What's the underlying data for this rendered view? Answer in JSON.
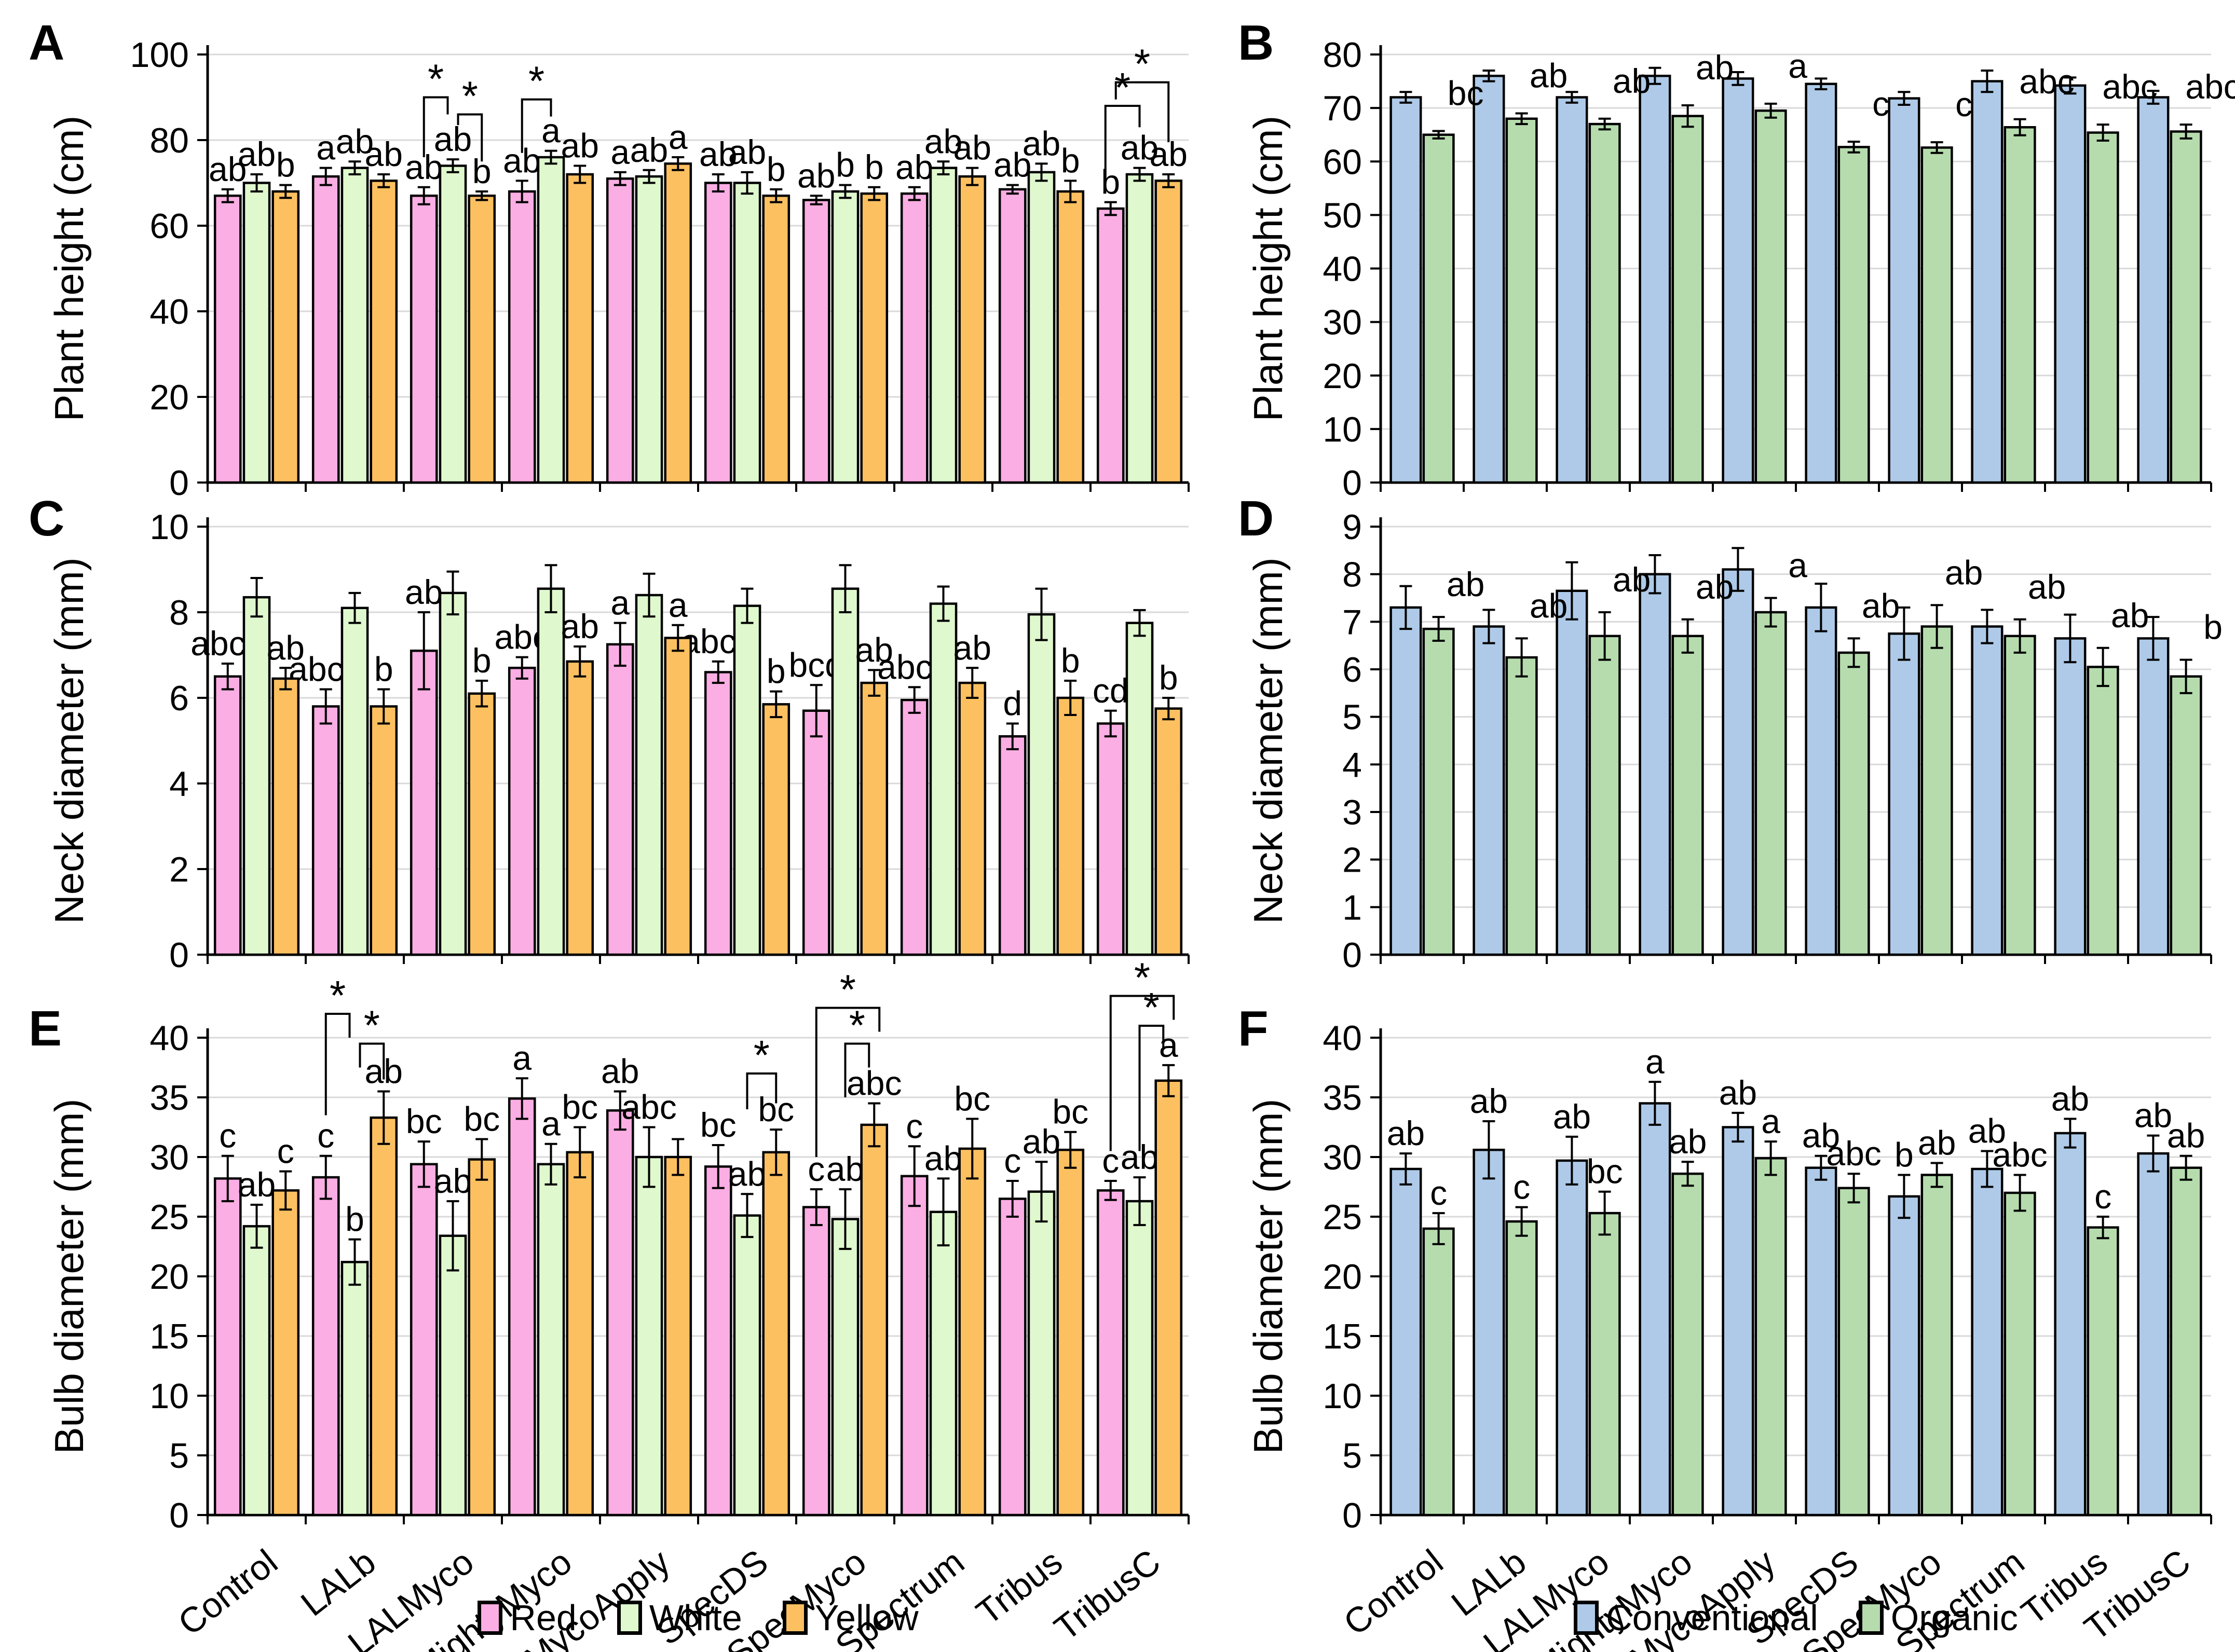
{
  "figure": {
    "panel_letters": [
      "A",
      "B",
      "C",
      "D",
      "E",
      "F"
    ]
  },
  "legend_left": {
    "items": [
      {
        "label": "Red",
        "color": "#FBAEE3"
      },
      {
        "label": "White",
        "color": "#DFF8CE"
      },
      {
        "label": "Yellow",
        "color": "#FDC061"
      }
    ]
  },
  "legend_right": {
    "items": [
      {
        "label": "Conventional",
        "color": "#AECAE8"
      },
      {
        "label": "Organic",
        "color": "#B6DCAE"
      }
    ]
  },
  "style": {
    "grid_color": "#D9D9D9",
    "axis_color": "#000000",
    "bar_stroke": "#000000"
  },
  "chart_data": [
    {
      "id": "A",
      "type": "bar",
      "title": "",
      "xlabel": "",
      "ylabel": "Plant height (cm)",
      "ylim": [
        0,
        100
      ],
      "ystep": 20,
      "grid": true,
      "show_x_labels": false,
      "categories": [
        "Control",
        "LALb",
        "LALMyco",
        "MightyMyco",
        "MycoApply",
        "SpecDS",
        "SpecMyco",
        "Spectrum",
        "Tribus",
        "TribusC"
      ],
      "series": [
        {
          "name": "Red",
          "color": "#FBAEE3",
          "values": [
            67,
            71.5,
            67,
            68,
            71,
            70,
            66,
            67.5,
            68.5,
            64
          ],
          "err": [
            1.5,
            2,
            2,
            2.5,
            1.5,
            2,
            1,
            1.5,
            1,
            1.5
          ],
          "labels": [
            "ab",
            "a",
            "ab",
            "ab",
            "a",
            "ab",
            "ab",
            "ab",
            "ab",
            "b"
          ]
        },
        {
          "name": "White",
          "color": "#DFF8CE",
          "values": [
            70,
            73.5,
            74,
            76,
            71.5,
            70,
            68,
            73.5,
            72.5,
            72
          ],
          "err": [
            2,
            1.5,
            1.5,
            1.5,
            1.5,
            2.5,
            1.5,
            1.5,
            2,
            1.5
          ],
          "labels": [
            "ab",
            "ab",
            "ab",
            "a",
            "ab",
            "ab",
            "b",
            "ab",
            "ab",
            "ab"
          ]
        },
        {
          "name": "Yellow",
          "color": "#FDC061",
          "values": [
            68,
            70.5,
            67,
            72,
            74.5,
            67,
            67.5,
            71.5,
            68,
            70.5
          ],
          "err": [
            1.5,
            1.5,
            1,
            2,
            1.5,
            1.5,
            1.5,
            2,
            2.5,
            1.5
          ],
          "labels": [
            "b",
            "ab",
            "b",
            "ab",
            "a",
            "b",
            "b",
            "ab",
            "b",
            "ab"
          ]
        }
      ],
      "brackets": [
        {
          "g": 2,
          "s1": 0,
          "s2": 1,
          "y": 90,
          "d1": 14,
          "d2": 4,
          "o1": 0,
          "o2": -10,
          "star": "*"
        },
        {
          "g": 2,
          "s1": 1,
          "s2": 2,
          "y": 86,
          "d1": 2.5,
          "d2": 11,
          "o1": 10,
          "o2": 0,
          "star": "*"
        },
        {
          "g": 3,
          "s1": 0,
          "s2": 1,
          "y": 89.5,
          "d1": 12.5,
          "d2": 4,
          "o1": 0,
          "o2": 0,
          "star": "*"
        },
        {
          "g": 9,
          "s1": 0,
          "s2": 1,
          "y": 88,
          "d1": 18,
          "d2": 5,
          "o1": -10,
          "o2": 0,
          "star": "*"
        },
        {
          "g": 9,
          "s1": 0,
          "s2": 2,
          "y": 93.5,
          "d1": 4,
          "d2": 14,
          "o1": 10,
          "o2": 0,
          "star": "*"
        }
      ]
    },
    {
      "id": "B",
      "type": "bar",
      "title": "",
      "xlabel": "",
      "ylabel": "Plant height (cm)",
      "ylim": [
        0,
        80
      ],
      "ystep": 10,
      "grid": true,
      "show_x_labels": false,
      "categories": [
        "Control",
        "LALb",
        "LALMyco",
        "MightyMyco",
        "MycoApply",
        "SpecDS",
        "SpecMyco",
        "Spectrum",
        "Tribus",
        "TribusC"
      ],
      "series": [
        {
          "name": "Conventional",
          "color": "#AECAE8",
          "values": [
            72,
            76,
            72,
            76,
            75.5,
            74.5,
            71.8,
            75,
            74.2,
            72
          ],
          "err": [
            1,
            1,
            1,
            1.5,
            1.2,
            1,
            1.2,
            2,
            1.5,
            1.2
          ],
          "labels": [
            "",
            "",
            "",
            "",
            "",
            "",
            "",
            "",
            "",
            ""
          ]
        },
        {
          "name": "Organic",
          "color": "#B6DCAE",
          "values": [
            65,
            68,
            67,
            68.5,
            69.5,
            62.7,
            62.6,
            66.4,
            65.4,
            65.6
          ],
          "err": [
            0.7,
            1,
            1,
            2,
            1.3,
            1,
            1,
            1.5,
            1.5,
            1.3
          ],
          "labels": [
            "bc",
            "ab",
            "ab",
            "ab",
            "a",
            "c",
            "c",
            "abc",
            "abc",
            "abc"
          ]
        }
      ],
      "brackets": []
    },
    {
      "id": "C",
      "type": "bar",
      "title": "",
      "xlabel": "",
      "ylabel": "Neck diameter (mm)",
      "ylim": [
        0,
        10
      ],
      "ystep": 2,
      "grid": true,
      "show_x_labels": false,
      "categories": [
        "Control",
        "LALb",
        "LALMyco",
        "MightyMyco",
        "MycoApply",
        "SpecDS",
        "SpecMyco",
        "Spectrum",
        "Tribus",
        "TribusC"
      ],
      "series": [
        {
          "name": "Red",
          "color": "#FBAEE3",
          "values": [
            6.5,
            5.8,
            7.1,
            6.7,
            7.25,
            6.6,
            5.7,
            5.95,
            5.1,
            5.4
          ],
          "err": [
            0.3,
            0.4,
            0.9,
            0.25,
            0.5,
            0.25,
            0.6,
            0.3,
            0.3,
            0.3
          ],
          "labels": [
            "abcd",
            "abcd",
            "ab",
            "abc",
            "a",
            "abcd",
            "bcd",
            "abcd",
            "d",
            "cd"
          ]
        },
        {
          "name": "White",
          "color": "#DFF8CE",
          "values": [
            8.35,
            8.1,
            8.45,
            8.55,
            8.4,
            8.15,
            8.55,
            8.2,
            7.95,
            7.75
          ],
          "err": [
            0.45,
            0.35,
            0.5,
            0.55,
            0.5,
            0.4,
            0.55,
            0.4,
            0.6,
            0.3
          ],
          "labels": [
            "",
            "",
            "",
            "",
            "",
            "",
            "",
            "",
            "",
            ""
          ]
        },
        {
          "name": "Yellow",
          "color": "#FDC061",
          "values": [
            6.45,
            5.8,
            6.1,
            6.85,
            7.4,
            5.85,
            6.35,
            6.35,
            6.0,
            5.75
          ],
          "err": [
            0.25,
            0.4,
            0.3,
            0.35,
            0.3,
            0.3,
            0.3,
            0.35,
            0.4,
            0.25
          ],
          "labels": [
            "ab",
            "b",
            "b",
            "ab",
            "a",
            "b",
            "ab",
            "ab",
            "b",
            "b"
          ]
        }
      ],
      "brackets": []
    },
    {
      "id": "D",
      "type": "bar",
      "title": "",
      "xlabel": "",
      "ylabel": "Neck diameter (mm)",
      "ylim": [
        0,
        9
      ],
      "ystep": 1,
      "grid": true,
      "show_x_labels": false,
      "categories": [
        "Control",
        "LALb",
        "LALMyco",
        "MightyMyco",
        "MycoApply",
        "SpecDS",
        "SpecMyco",
        "Spectrum",
        "Tribus",
        "TribusC"
      ],
      "series": [
        {
          "name": "Conventional",
          "color": "#AECAE8",
          "values": [
            7.3,
            6.9,
            7.65,
            8.0,
            8.1,
            7.3,
            6.75,
            6.9,
            6.65,
            6.65
          ],
          "err": [
            0.45,
            0.35,
            0.6,
            0.4,
            0.45,
            0.5,
            0.55,
            0.35,
            0.5,
            0.45
          ],
          "labels": [
            "",
            "",
            "",
            "",
            "",
            "",
            "",
            "",
            "",
            ""
          ]
        },
        {
          "name": "Organic",
          "color": "#B6DCAE",
          "values": [
            6.85,
            6.25,
            6.7,
            6.7,
            7.2,
            6.35,
            6.9,
            6.7,
            6.05,
            5.85
          ],
          "err": [
            0.25,
            0.4,
            0.5,
            0.35,
            0.3,
            0.3,
            0.45,
            0.35,
            0.4,
            0.35
          ],
          "labels": [
            "ab",
            "ab",
            "ab",
            "ab",
            "a",
            "ab",
            "ab",
            "ab",
            "ab",
            "b"
          ]
        }
      ],
      "brackets": []
    },
    {
      "id": "E",
      "type": "bar",
      "title": "",
      "xlabel": "",
      "ylabel": "Bulb diameter (mm)",
      "ylim": [
        0,
        40
      ],
      "ystep": 5,
      "grid": true,
      "show_x_labels": true,
      "categories": [
        "Control",
        "LALb",
        "LALMyco",
        "MightyMyco",
        "MycoApply",
        "SpecDS",
        "SpecMyco",
        "Spectrum",
        "Tribus",
        "TribusC"
      ],
      "series": [
        {
          "name": "Red",
          "color": "#FBAEE3",
          "values": [
            28.2,
            28.3,
            29.4,
            34.9,
            33.9,
            29.2,
            25.8,
            28.4,
            26.5,
            27.2
          ],
          "err": [
            1.9,
            1.8,
            1.9,
            1.7,
            1.6,
            1.8,
            1.5,
            2.5,
            1.5,
            0.8
          ],
          "labels": [
            "c",
            "c",
            "bc",
            "a",
            "ab",
            "bc",
            "c",
            "c",
            "c",
            "c"
          ]
        },
        {
          "name": "White",
          "color": "#DFF8CE",
          "values": [
            24.2,
            21.2,
            23.4,
            29.4,
            30.0,
            25.1,
            24.8,
            25.4,
            27.1,
            26.3
          ],
          "err": [
            1.8,
            1.9,
            2.9,
            1.7,
            2.5,
            1.8,
            2.5,
            2.8,
            2.5,
            2.0
          ],
          "labels": [
            "ab",
            "b",
            "ab",
            "a",
            "abc",
            "ab",
            "ab",
            "ab",
            "ab",
            "ab"
          ]
        },
        {
          "name": "Yellow",
          "color": "#FDC061",
          "values": [
            27.2,
            33.3,
            29.8,
            30.4,
            30.0,
            30.4,
            32.7,
            30.7,
            30.6,
            36.4
          ],
          "err": [
            1.6,
            2.2,
            1.7,
            2.1,
            1.5,
            1.9,
            1.8,
            2.5,
            1.5,
            1.3
          ],
          "labels": [
            "c",
            "ab",
            "bc",
            "bc",
            "",
            "bc",
            "abc",
            "bc",
            "bc",
            "a"
          ]
        }
      ],
      "brackets": [
        {
          "g": 1,
          "s1": 0,
          "s2": 1,
          "y": 42,
          "d1": 8.5,
          "d2": 2,
          "o1": 0,
          "o2": -10,
          "star": "*"
        },
        {
          "g": 1,
          "s1": 1,
          "s2": 2,
          "y": 39.5,
          "d1": 2,
          "d2": 3,
          "o1": 10,
          "o2": 0,
          "star": "*"
        },
        {
          "g": 5,
          "s1": 1,
          "s2": 2,
          "y": 37,
          "d1": 3,
          "d2": 2.5,
          "o1": 0,
          "o2": 0,
          "star": "*"
        },
        {
          "g": 6,
          "s1": 0,
          "s2": 2,
          "y": 42.5,
          "d1": 12.5,
          "d2": 2,
          "o1": 0,
          "o2": 10,
          "star": "*"
        },
        {
          "g": 6,
          "s1": 1,
          "s2": 2,
          "y": 39.5,
          "d1": 4.5,
          "d2": 2,
          "o1": 0,
          "o2": -10,
          "star": "*"
        },
        {
          "g": 9,
          "s1": 0,
          "s2": 2,
          "y": 43.5,
          "d1": 13,
          "d2": 2,
          "o1": 0,
          "o2": 10,
          "star": "*"
        },
        {
          "g": 9,
          "s1": 1,
          "s2": 2,
          "y": 41,
          "d1": 10.5,
          "d2": 2,
          "o1": 0,
          "o2": -10,
          "star": "*"
        }
      ]
    },
    {
      "id": "F",
      "type": "bar",
      "title": "",
      "xlabel": "",
      "ylabel": "Bulb diameter (mm)",
      "ylim": [
        0,
        40
      ],
      "ystep": 5,
      "grid": true,
      "show_x_labels": true,
      "categories": [
        "Control",
        "LALb",
        "LALMyco",
        "MightyMyco",
        "MycoApply",
        "SpecDS",
        "SpecMyco",
        "Spectrum",
        "Tribus",
        "TribusC"
      ],
      "series": [
        {
          "name": "Conventional",
          "color": "#AECAE8",
          "values": [
            29.0,
            30.6,
            29.7,
            34.5,
            32.5,
            29.1,
            26.7,
            29.0,
            32.0,
            30.3
          ],
          "err": [
            1.3,
            2.4,
            2.0,
            1.8,
            1.2,
            1.0,
            1.8,
            1.5,
            1.2,
            1.5
          ],
          "labels": [
            "ab",
            "ab",
            "ab",
            "a",
            "ab",
            "ab",
            "b",
            "ab",
            "ab",
            "ab"
          ]
        },
        {
          "name": "Organic",
          "color": "#B6DCAE",
          "values": [
            24.0,
            24.6,
            25.3,
            28.6,
            29.9,
            27.4,
            28.5,
            27.0,
            24.1,
            29.1
          ],
          "err": [
            1.3,
            1.2,
            1.8,
            1.0,
            1.4,
            1.2,
            1.0,
            1.5,
            0.9,
            1.0
          ],
          "labels": [
            "c",
            "c",
            "bc",
            "ab",
            "a",
            "abc",
            "ab",
            "abc",
            "c",
            "ab"
          ]
        }
      ],
      "brackets": []
    }
  ]
}
